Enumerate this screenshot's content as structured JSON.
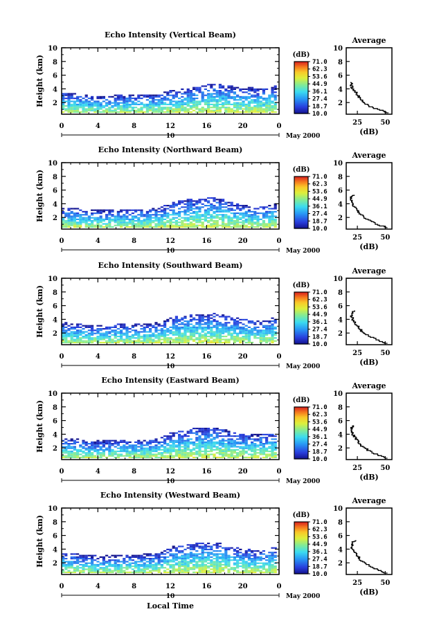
{
  "chart_data": [
    {
      "type": "heatmap",
      "title": "Echo Intensity (Vertical Beam)",
      "xlabel": "",
      "ylabel": "Height (km)",
      "xlim": [
        0,
        24
      ],
      "ylim": [
        0.3,
        10
      ],
      "xticks": [
        "0",
        "4",
        "8",
        "12",
        "16",
        "20",
        "0"
      ],
      "yticks": [
        "2",
        "4",
        "6",
        "8",
        "10"
      ],
      "date_day": "10",
      "date_label": "May 2000",
      "colorbar_unit": "(dB)",
      "colorbar_ticks": [
        "71.0",
        "62.3",
        "53.6",
        "44.9",
        "36.1",
        "27.4",
        "18.7",
        "10.0"
      ],
      "echo_top_km": [
        3.0,
        3.0,
        2.8,
        2.6,
        2.5,
        2.5,
        2.6,
        2.7,
        2.7,
        2.7,
        2.8,
        2.8,
        3.3,
        3.4,
        3.6,
        3.8,
        4.1,
        4.3,
        4.3,
        4.0,
        3.8,
        3.8,
        3.6,
        3.8,
        4.0
      ],
      "average": {
        "title": "Average",
        "xlabel": "(dB)",
        "xticks": [
          "25",
          "50"
        ],
        "xlim": [
          15,
          56
        ],
        "yticks": [
          "2",
          "4",
          "6",
          "8",
          "10"
        ],
        "profile_height_km": [
          0.5,
          1.0,
          1.5,
          2.0,
          2.5,
          3.0,
          3.5,
          4.0,
          4.3,
          4.6,
          5.0
        ],
        "profile_db": [
          53,
          45,
          36,
          31,
          28,
          26,
          24,
          21,
          20,
          19,
          20
        ]
      }
    },
    {
      "type": "heatmap",
      "title": "Echo Intensity (Northward Beam)",
      "xlabel": "",
      "ylabel": "Height (km)",
      "xlim": [
        0,
        24
      ],
      "ylim": [
        0.3,
        10
      ],
      "xticks": [
        "0",
        "4",
        "8",
        "12",
        "16",
        "20",
        "0"
      ],
      "yticks": [
        "2",
        "4",
        "6",
        "8",
        "10"
      ],
      "date_day": "10",
      "date_label": "May 2000",
      "colorbar_unit": "(dB)",
      "colorbar_ticks": [
        "71.0",
        "62.3",
        "53.6",
        "44.9",
        "36.1",
        "27.4",
        "18.7",
        "10.0"
      ],
      "echo_top_km": [
        3.0,
        3.0,
        2.8,
        2.7,
        2.6,
        2.6,
        2.7,
        2.8,
        2.8,
        2.8,
        2.9,
        3.0,
        3.6,
        3.9,
        4.2,
        4.3,
        4.4,
        4.5,
        4.3,
        3.8,
        3.4,
        3.2,
        3.2,
        3.3,
        3.6
      ],
      "average": {
        "title": "Average",
        "xlabel": "(dB)",
        "xticks": [
          "25",
          "50"
        ],
        "xlim": [
          15,
          56
        ],
        "yticks": [
          "2",
          "4",
          "6",
          "8",
          "10"
        ],
        "profile_height_km": [
          0.5,
          1.0,
          1.5,
          2.0,
          2.5,
          3.0,
          3.5,
          4.0,
          4.5,
          5.0,
          5.3
        ],
        "profile_db": [
          52,
          44,
          37,
          32,
          28,
          26,
          23,
          21,
          20,
          20,
          22
        ]
      }
    },
    {
      "type": "heatmap",
      "title": "Echo Intensity (Southward Beam)",
      "xlabel": "",
      "ylabel": "Height (km)",
      "xlim": [
        0,
        24
      ],
      "ylim": [
        0.3,
        10
      ],
      "xticks": [
        "0",
        "4",
        "8",
        "12",
        "16",
        "20",
        "0"
      ],
      "yticks": [
        "2",
        "4",
        "6",
        "8",
        "10"
      ],
      "date_day": "10",
      "date_label": "May 2000",
      "colorbar_unit": "(dB)",
      "colorbar_ticks": [
        "71.0",
        "62.3",
        "53.6",
        "44.9",
        "36.1",
        "27.4",
        "18.7",
        "10.0"
      ],
      "echo_top_km": [
        3.1,
        3.0,
        2.9,
        2.8,
        2.7,
        2.7,
        2.8,
        2.9,
        2.9,
        2.9,
        3.0,
        3.1,
        3.7,
        4.0,
        4.2,
        4.3,
        4.3,
        4.4,
        4.2,
        3.9,
        3.6,
        3.5,
        3.4,
        3.6,
        3.9
      ],
      "average": {
        "title": "Average",
        "xlabel": "(dB)",
        "xticks": [
          "25",
          "50"
        ],
        "xlim": [
          15,
          56
        ],
        "yticks": [
          "2",
          "4",
          "6",
          "8",
          "10"
        ],
        "profile_height_km": [
          0.5,
          1.0,
          1.5,
          2.0,
          2.5,
          3.0,
          3.5,
          4.0,
          4.5,
          5.0,
          5.3
        ],
        "profile_db": [
          52,
          44,
          37,
          32,
          28,
          26,
          23,
          21,
          20,
          20,
          22
        ]
      }
    },
    {
      "type": "heatmap",
      "title": "Echo Intensity (Eastward Beam)",
      "xlabel": "",
      "ylabel": "Height (km)",
      "xlim": [
        0,
        24
      ],
      "ylim": [
        0.3,
        10
      ],
      "xticks": [
        "0",
        "4",
        "8",
        "12",
        "16",
        "20",
        "0"
      ],
      "yticks": [
        "2",
        "4",
        "6",
        "8",
        "10"
      ],
      "date_day": "10",
      "date_label": "May 2000",
      "colorbar_unit": "(dB)",
      "colorbar_ticks": [
        "71.0",
        "62.3",
        "53.6",
        "44.9",
        "36.1",
        "27.4",
        "18.7",
        "10.0"
      ],
      "echo_top_km": [
        3.0,
        2.9,
        2.8,
        2.7,
        2.6,
        2.6,
        2.7,
        2.8,
        2.8,
        2.8,
        2.9,
        3.0,
        3.7,
        4.0,
        4.3,
        4.4,
        4.5,
        4.5,
        4.3,
        3.9,
        3.6,
        3.5,
        3.5,
        3.6,
        3.9
      ],
      "average": {
        "title": "Average",
        "xlabel": "(dB)",
        "xticks": [
          "25",
          "50"
        ],
        "xlim": [
          15,
          56
        ],
        "yticks": [
          "2",
          "4",
          "6",
          "8",
          "10"
        ],
        "profile_height_km": [
          0.5,
          1.0,
          1.5,
          2.0,
          2.5,
          3.0,
          3.5,
          4.0,
          4.5,
          5.0,
          5.3
        ],
        "profile_db": [
          52,
          44,
          37,
          32,
          28,
          26,
          23,
          21,
          20,
          20,
          22
        ]
      }
    },
    {
      "type": "heatmap",
      "title": "Echo Intensity (Westward Beam)",
      "xlabel": "Local Time",
      "ylabel": "Height (km)",
      "xlim": [
        0,
        24
      ],
      "ylim": [
        0.3,
        10
      ],
      "xticks": [
        "0",
        "4",
        "8",
        "12",
        "16",
        "20",
        "0"
      ],
      "yticks": [
        "2",
        "4",
        "6",
        "8",
        "10"
      ],
      "date_day": "10",
      "date_label": "May 2000",
      "colorbar_unit": "(dB)",
      "colorbar_ticks": [
        "71.0",
        "62.3",
        "53.6",
        "44.9",
        "36.1",
        "27.4",
        "18.7",
        "10.0"
      ],
      "echo_top_km": [
        3.0,
        3.0,
        2.8,
        2.7,
        2.6,
        2.6,
        2.7,
        2.8,
        2.8,
        2.8,
        2.9,
        3.0,
        3.8,
        4.1,
        4.3,
        4.5,
        4.5,
        4.6,
        4.3,
        3.9,
        3.6,
        3.5,
        3.4,
        3.6,
        3.9
      ],
      "average": {
        "title": "Average",
        "xlabel": "(dB)",
        "xticks": [
          "25",
          "50"
        ],
        "xlim": [
          15,
          56
        ],
        "yticks": [
          "2",
          "4",
          "6",
          "8",
          "10"
        ],
        "profile_height_km": [
          0.5,
          1.0,
          1.5,
          2.0,
          2.5,
          3.0,
          3.5,
          4.0,
          4.5,
          5.0,
          5.3
        ],
        "profile_db": [
          52,
          44,
          37,
          32,
          28,
          26,
          23,
          21,
          20,
          20,
          24
        ]
      }
    }
  ]
}
